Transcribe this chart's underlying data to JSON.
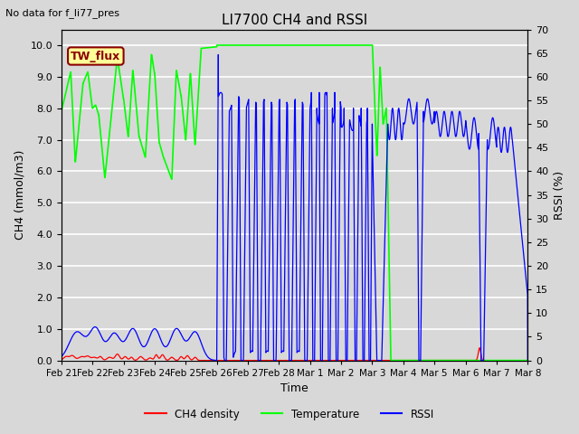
{
  "title": "LI7700 CH4 and RSSI",
  "top_left_text": "No data for f_li77_pres",
  "legend_box_text": "TW_flux",
  "xlabel": "Time",
  "ylabel_left": "CH4 (mmol/m3)",
  "ylabel_right": "RSSI (%)",
  "ylim_left": [
    0.0,
    10.5
  ],
  "ylim_right": [
    0,
    70
  ],
  "yticks_left": [
    0.0,
    1.0,
    2.0,
    3.0,
    4.0,
    5.0,
    6.0,
    7.0,
    8.0,
    9.0,
    10.0
  ],
  "yticks_right": [
    0,
    5,
    10,
    15,
    20,
    25,
    30,
    35,
    40,
    45,
    50,
    55,
    60,
    65,
    70
  ],
  "xtick_labels": [
    "Feb 21",
    "Feb 22",
    "Feb 23",
    "Feb 24",
    "Feb 25",
    "Feb 26",
    "Feb 27",
    "Feb 28",
    "Mar 1",
    "Mar 2",
    "Mar 3",
    "Mar 4",
    "Mar 5",
    "Mar 6",
    "Mar 7",
    "Mar 8"
  ],
  "background_color": "#d8d8d8",
  "axes_bg_color": "#d8d8d8",
  "ch4_color": "#ff0000",
  "temp_color": "#00ff00",
  "rssi_color": "#0000ff",
  "legend_entries": [
    "CH4 density",
    "Temperature",
    "RSSI"
  ],
  "legend_colors": [
    "#ff0000",
    "#00ff00",
    "#0000ff"
  ],
  "grid_color": "#ffffff"
}
